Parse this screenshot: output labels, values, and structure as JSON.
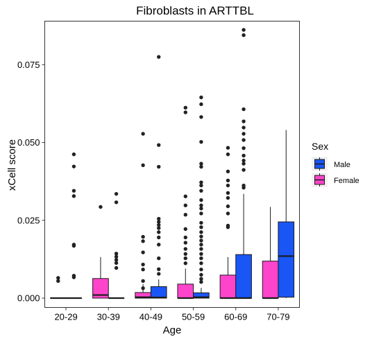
{
  "chart_data": {
    "type": "boxplot",
    "title": "Fibroblasts in ARTTBL",
    "xlabel": "Age",
    "ylabel": "xCell score",
    "categories": [
      "20-29",
      "30-39",
      "40-49",
      "50-59",
      "60-69",
      "70-79"
    ],
    "ylim": [
      -0.003,
      0.089
    ],
    "yticks": [
      0.0,
      0.025,
      0.05,
      0.075
    ],
    "ytick_labels": [
      "0.000",
      "0.025",
      "0.050",
      "0.075"
    ],
    "grid": false,
    "legend": {
      "title": "Sex",
      "placement": "right",
      "entries": [
        {
          "label": "Male",
          "color": "#1a56f5"
        },
        {
          "label": "Female",
          "color": "#ff44cc"
        }
      ]
    },
    "series": [
      {
        "name": "Female",
        "color": "#ff44cc",
        "boxes": [
          {
            "category": "20-29",
            "min": 0.0,
            "q1": 0.0,
            "median": 0.0,
            "q3": 0.0,
            "max": 0.0,
            "outliers": [
              0.0065,
              0.0055
            ]
          },
          {
            "category": "30-39",
            "min": 0.0,
            "q1": 0.0,
            "median": 0.001,
            "q3": 0.0063,
            "max": 0.0132,
            "outliers": [
              0.0293
            ]
          },
          {
            "category": "40-49",
            "min": 0.0,
            "q1": 0.0,
            "median": 0.0003,
            "q3": 0.0018,
            "max": 0.0045,
            "outliers": [
              0.0528,
              0.0427,
              0.0197,
              0.0183,
              0.0147,
              0.0108,
              0.0092,
              0.0055,
              0.0032
            ]
          },
          {
            "category": "50-59",
            "min": 0.0,
            "q1": 0.0,
            "median": 0.0,
            "q3": 0.0045,
            "max": 0.0095,
            "outliers": [
              0.0612,
              0.0597,
              0.0327,
              0.0298,
              0.0268,
              0.0222,
              0.0195,
              0.0178,
              0.0158,
              0.0142,
              0.0128,
              0.0112
            ]
          },
          {
            "category": "60-69",
            "min": 0.0,
            "q1": 0.0,
            "median": 0.0,
            "q3": 0.0074,
            "max": 0.0132,
            "outliers": [
              0.0483,
              0.0462,
              0.0407,
              0.0378,
              0.0362,
              0.0338,
              0.0322,
              0.0295,
              0.0272,
              0.0233,
              0.0228
            ]
          },
          {
            "category": "70-79",
            "min": 0.0,
            "q1": 0.0,
            "median": 0.0,
            "q3": 0.0119,
            "max": 0.0293,
            "outliers": []
          }
        ]
      },
      {
        "name": "Male",
        "color": "#1a56f5",
        "boxes": [
          {
            "category": "20-29",
            "min": 0.0,
            "q1": 0.0,
            "median": 0.0,
            "q3": 0.0,
            "max": 0.0,
            "outliers": [
              0.0462,
              0.0423,
              0.0345,
              0.0328,
              0.0172,
              0.0168,
              0.0072,
              0.0067
            ]
          },
          {
            "category": "30-39",
            "min": 0.0,
            "q1": 0.0,
            "median": 0.0,
            "q3": 0.0,
            "max": 0.0,
            "outliers": [
              0.0335,
              0.0308,
              0.0143,
              0.0133,
              0.0123,
              0.0113,
              0.0097
            ]
          },
          {
            "category": "40-49",
            "min": 0.0,
            "q1": 0.0,
            "median": 0.0002,
            "q3": 0.0037,
            "max": 0.006,
            "outliers": [
              0.0775,
              0.0492,
              0.0422,
              0.0255,
              0.0245,
              0.0235,
              0.0225,
              0.0212,
              0.0195,
              0.0172,
              0.0128,
              0.0093,
              0.0078
            ]
          },
          {
            "category": "50-59",
            "min": 0.0,
            "q1": 0.0,
            "median": 0.0003,
            "q3": 0.0017,
            "max": 0.0033,
            "outliers": [
              0.0645,
              0.0623,
              0.0582,
              0.0502,
              0.0432,
              0.0422,
              0.0372,
              0.0362,
              0.0345,
              0.0315,
              0.0298,
              0.0288,
              0.0272,
              0.0242,
              0.0228,
              0.0212,
              0.0198,
              0.0185,
              0.0172,
              0.0158,
              0.0142,
              0.0128,
              0.0112,
              0.0092,
              0.0075,
              0.0062,
              0.0052
            ]
          },
          {
            "category": "60-69",
            "min": 0.0,
            "q1": 0.0,
            "median": 0.0,
            "q3": 0.014,
            "max": 0.0335,
            "outliers": [
              0.0862,
              0.0845,
              0.0607,
              0.0568,
              0.0548,
              0.0528,
              0.0508,
              0.0482,
              0.0458,
              0.0442,
              0.0432,
              0.0412,
              0.0362,
              0.0355
            ]
          },
          {
            "category": "70-79",
            "min": 0.0,
            "q1": 0.0003,
            "median": 0.0135,
            "q3": 0.0245,
            "max": 0.054,
            "outliers": []
          }
        ]
      }
    ]
  }
}
